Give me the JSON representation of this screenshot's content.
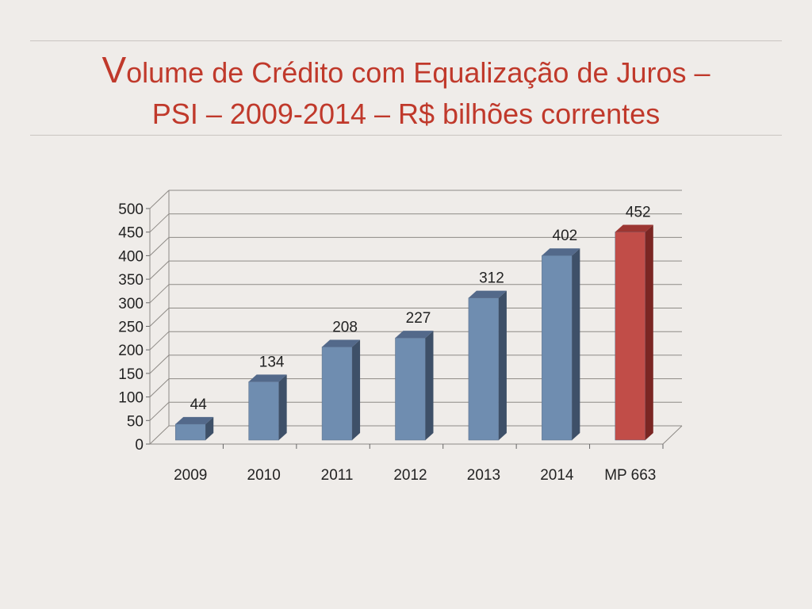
{
  "title": {
    "initial": "V",
    "line1_rest": "olume de Crédito com Equalização de Juros –",
    "line2": "PSI – 2009-2014 – R$ bilhões correntes"
  },
  "colors": {
    "title": "#c0392b",
    "bar_front": "#6f8db0",
    "bar_side": "#3e5068",
    "bar_top": "#53698a",
    "highlight_front": "#c14d48",
    "highlight_side": "#7a2623",
    "highlight_top": "#9c3632"
  },
  "chart_data": {
    "type": "bar",
    "style": "3d-column",
    "categories": [
      "2009",
      "2010",
      "2011",
      "2012",
      "2013",
      "2014",
      "MP 663"
    ],
    "values": [
      44,
      134,
      208,
      227,
      312,
      402,
      452
    ],
    "highlight_index": 6,
    "ylim": [
      0,
      500
    ],
    "yticks": [
      "0",
      "50",
      "100",
      "150",
      "200",
      "250",
      "300",
      "350",
      "400",
      "450",
      "500"
    ],
    "grid": true,
    "legend": "none",
    "xlabel": "",
    "ylabel": ""
  }
}
